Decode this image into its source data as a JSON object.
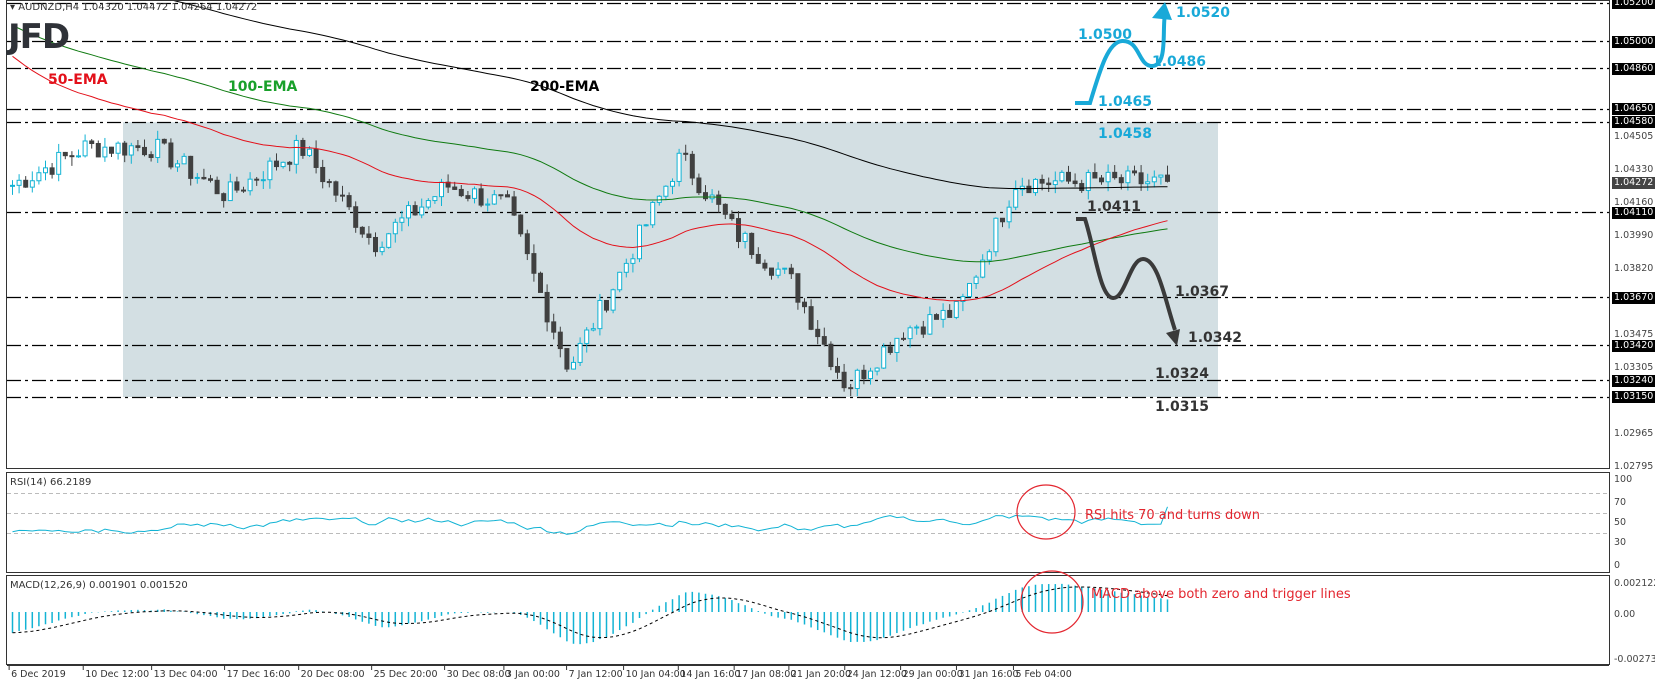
{
  "header": {
    "symbol_line": "AUDNZD,H4  1.04320 1.04472 1.04264 1.04272",
    "logo": "JFD"
  },
  "colors": {
    "bull": "#12b3d4",
    "bear": "#404040",
    "ema50": "#e3101a",
    "ema100": "#0f7a10",
    "ema200": "#000000",
    "range_fill": "#d3dfe3",
    "bull_scenario": "#19a9d8",
    "bear_scenario": "#3a3a3a",
    "annotation": "#e3262f"
  },
  "ema_labels": {
    "ema50": "50-EMA",
    "ema100": "100-EMA",
    "ema200": "200-EMA"
  },
  "scenario_labels": {
    "bull": [
      "1.0520",
      "1.0500",
      "1.0486",
      "1.0465",
      "1.0458"
    ],
    "bear": [
      "1.0411",
      "1.0367",
      "1.0342",
      "1.0324",
      "1.0315"
    ]
  },
  "price_axis": {
    "ticks": [
      "1.04505",
      "1.04330",
      "1.04160",
      "1.03990",
      "1.03820",
      "1.03475",
      "1.03305",
      "1.02965",
      "1.02795"
    ],
    "level_tags": [
      "1.05200",
      "1.05000",
      "1.04860",
      "1.04650",
      "1.04580",
      "1.04110",
      "1.03670",
      "1.03420",
      "1.03240",
      "1.03150"
    ],
    "current_price": "1.04272"
  },
  "rsi": {
    "label": "RSI(14) 66.2189",
    "ticks": [
      "100",
      "70",
      "50",
      "30",
      "0"
    ],
    "annotation": "RSI hits 70 and turns down"
  },
  "macd": {
    "label": "MACD(12,26,9) 0.001901 0.001520",
    "ticks": [
      "0.002122",
      "0.00",
      "-0.002736"
    ],
    "annotation": "MACD above both zero and trigger lines"
  },
  "time_axis": {
    "labels": [
      "6 Dec 2019",
      "10 Dec 12:00",
      "13 Dec 04:00",
      "17 Dec 16:00",
      "20 Dec 08:00",
      "25 Dec 20:00",
      "30 Dec 08:00",
      "3 Jan 00:00",
      "7 Jan 12:00",
      "10 Jan 04:00",
      "14 Jan 16:00",
      "17 Jan 08:00",
      "21 Jan 20:00",
      "24 Jan 12:00",
      "29 Jan 00:00",
      "31 Jan 16:00",
      "5 Feb 04:00"
    ]
  },
  "chart_data": {
    "type": "candlestick",
    "title": "AUDNZD, H4",
    "ohlc_last": {
      "open": 1.0432,
      "high": 1.04472,
      "low": 1.04264,
      "close": 1.04272
    },
    "x": [
      "6 Dec 2019",
      "10 Dec 12:00",
      "13 Dec 04:00",
      "17 Dec 16:00",
      "20 Dec 08:00",
      "25 Dec 20:00",
      "30 Dec 08:00",
      "3 Jan 00:00",
      "7 Jan 12:00",
      "10 Jan 04:00",
      "14 Jan 16:00",
      "17 Jan 08:00",
      "21 Jan 20:00",
      "24 Jan 12:00",
      "29 Jan 00:00",
      "31 Jan 16:00",
      "5 Feb 04:00"
    ],
    "approx_close_at_ticks": [
      1.0425,
      1.0445,
      1.0445,
      1.042,
      1.0445,
      1.0395,
      1.0425,
      1.0415,
      1.033,
      1.0385,
      1.044,
      1.04,
      1.0375,
      1.032,
      1.035,
      1.036,
      1.0427
    ],
    "ylim": [
      1.02795,
      1.052
    ],
    "horizontal_levels": [
      1.052,
      1.05,
      1.0486,
      1.0465,
      1.0458,
      1.0411,
      1.0367,
      1.0342,
      1.0324,
      1.0315
    ],
    "range_box": {
      "top": 1.0458,
      "bottom": 1.0315
    },
    "series": [
      {
        "name": "50-EMA",
        "approx_end": 1.0378
      },
      {
        "name": "100-EMA",
        "approx_end": 1.0378
      },
      {
        "name": "200-EMA",
        "approx_end": 1.04
      }
    ],
    "projections": {
      "bullish": [
        1.0465,
        1.05,
        1.0486,
        1.052
      ],
      "bearish": [
        1.0411,
        1.0367,
        1.039,
        1.0342
      ]
    },
    "subcharts": [
      {
        "name": "RSI(14)",
        "value": 66.2189,
        "levels": [
          30,
          50,
          70
        ],
        "ylim": [
          0,
          100
        ]
      },
      {
        "name": "MACD(12,26,9)",
        "macd": 0.001901,
        "signal": 0.00152,
        "ylim": [
          -0.002736,
          0.002122
        ]
      }
    ]
  }
}
